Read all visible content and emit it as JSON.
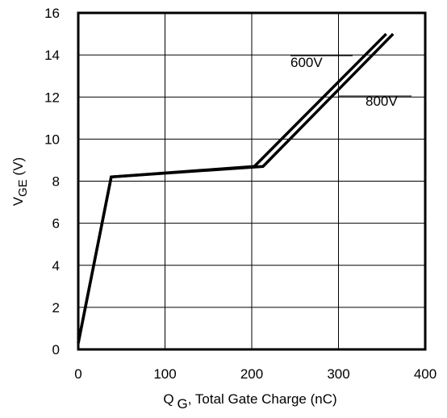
{
  "chart_data": {
    "type": "line",
    "title": "",
    "xlabel": {
      "main": "Q",
      "sub": "G",
      "rest": ", Total Gate Charge (nC)"
    },
    "ylabel": {
      "main": "V",
      "sub": "GE",
      "rest": " (V)"
    },
    "xlim": [
      0,
      400
    ],
    "ylim": [
      0,
      16
    ],
    "xticks": [
      0,
      100,
      200,
      300,
      400
    ],
    "yticks": [
      0,
      2,
      4,
      6,
      8,
      10,
      12,
      14,
      16
    ],
    "grid": true,
    "series": [
      {
        "name": "600V",
        "x": [
          0,
          38,
          203,
          355
        ],
        "y": [
          0.3,
          8.2,
          8.7,
          15.0
        ]
      },
      {
        "name": "800V",
        "x": [
          0,
          38,
          213,
          363
        ],
        "y": [
          0.3,
          8.2,
          8.7,
          15.0
        ]
      }
    ]
  }
}
